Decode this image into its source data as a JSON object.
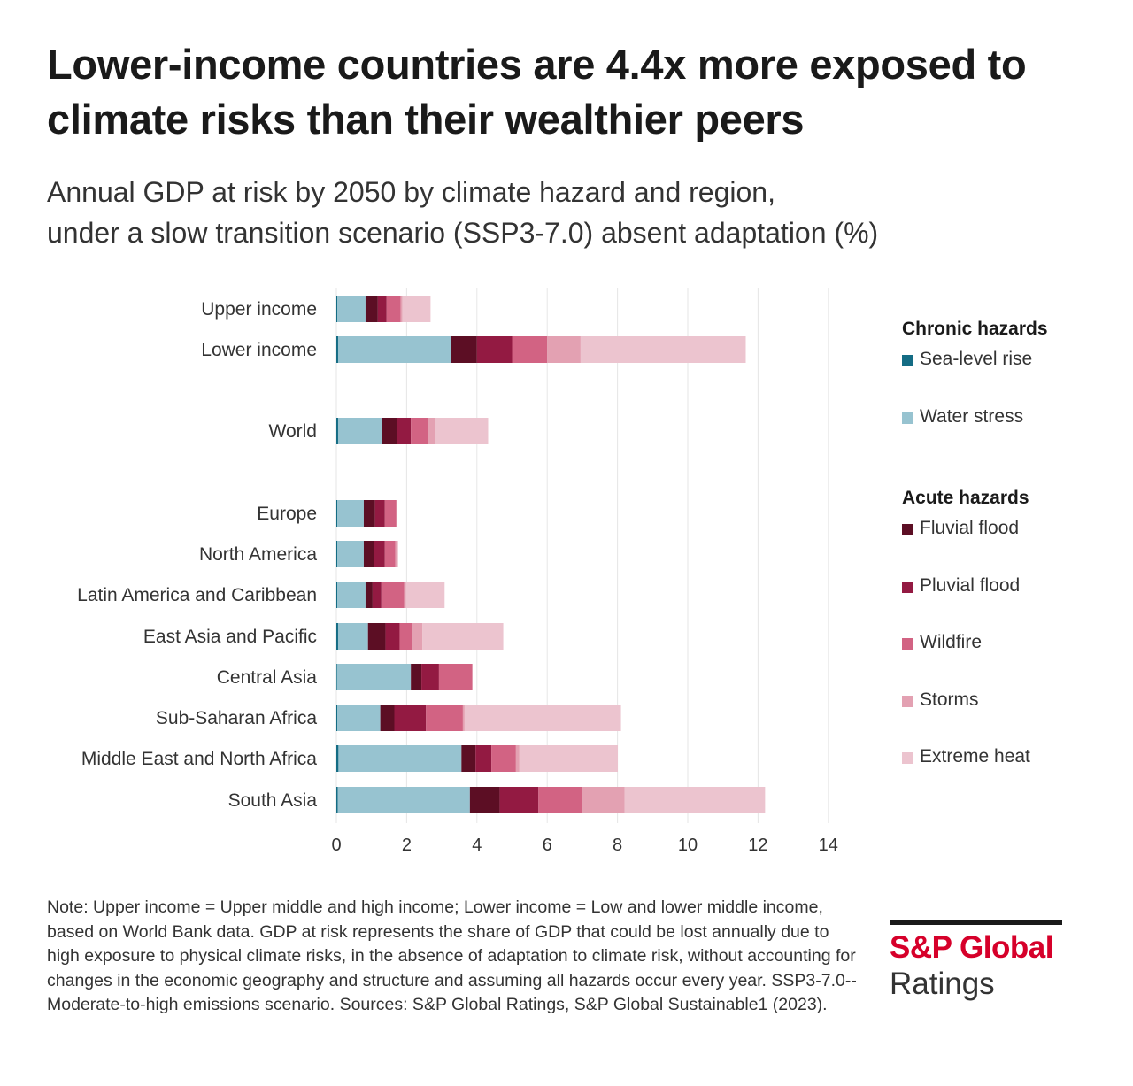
{
  "title": "Lower-income countries are 4.4x more exposed to climate risks than their wealthier peers",
  "subtitle_line1": "Annual GDP at risk by 2050 by climate hazard and region,",
  "subtitle_line2": "under a slow transition scenario (SSP3-7.0) absent adaptation (%)",
  "chart_data": {
    "type": "bar",
    "orientation": "horizontal",
    "stacked": true,
    "categories": [
      "Upper income",
      "Lower income",
      "World",
      "Europe",
      "North America",
      "Latin America and Caribbean",
      "East Asia and Pacific",
      "Central Asia",
      "Sub-Saharan Africa",
      "Middle East and North Africa",
      "South Asia"
    ],
    "series": [
      {
        "name": "Sea-level rise",
        "color": "#146c84",
        "values": [
          0.03,
          0.05,
          0.05,
          0.03,
          0.03,
          0.03,
          0.05,
          0.02,
          0.03,
          0.06,
          0.04
        ]
      },
      {
        "name": "Water stress",
        "color": "#97c3d0",
        "values": [
          0.8,
          3.2,
          1.25,
          0.75,
          0.75,
          0.8,
          0.85,
          2.1,
          1.22,
          3.5,
          3.76
        ]
      },
      {
        "name": "Fluvial flood",
        "color": "#5c0e24",
        "values": [
          0.35,
          0.75,
          0.42,
          0.32,
          0.3,
          0.2,
          0.5,
          0.3,
          0.4,
          0.4,
          0.85
        ]
      },
      {
        "name": "Pluvial flood",
        "color": "#931a42",
        "values": [
          0.25,
          1.0,
          0.4,
          0.28,
          0.3,
          0.25,
          0.4,
          0.5,
          0.9,
          0.45,
          1.1
        ]
      },
      {
        "name": "Wildfire",
        "color": "#d26383",
        "values": [
          0.4,
          1.0,
          0.5,
          0.32,
          0.3,
          0.65,
          0.35,
          0.95,
          1.05,
          0.7,
          1.25
        ]
      },
      {
        "name": "Storms",
        "color": "#e3a1b2",
        "values": [
          0.05,
          0.95,
          0.2,
          0.02,
          0.05,
          0.05,
          0.3,
          0.0,
          0.05,
          0.1,
          1.2
        ]
      },
      {
        "name": "Extreme heat",
        "color": "#ecc4cf",
        "values": [
          0.8,
          4.7,
          1.5,
          0.0,
          0.03,
          1.1,
          2.3,
          0.0,
          4.45,
          2.8,
          4.0
        ]
      }
    ],
    "xlim": [
      0,
      14
    ],
    "xticks": [
      "0",
      "2",
      "4",
      "6",
      "8",
      "10",
      "12",
      "14"
    ],
    "xlabel": "",
    "ylabel": "",
    "grid": true
  },
  "legend": {
    "chronic_head": "Chronic hazards",
    "chronic_items": [
      "Sea-level rise",
      "Water stress"
    ],
    "acute_head": "Acute hazards",
    "acute_items": [
      "Fluvial flood",
      "Pluvial flood",
      "Wildfire",
      "Storms",
      "Extreme heat"
    ],
    "colors": [
      "#146c84",
      "#97c3d0",
      "#5c0e24",
      "#931a42",
      "#d26383",
      "#e3a1b2",
      "#ecc4cf"
    ]
  },
  "note": "Note: Upper income = Upper middle and high income; Lower income = Low and lower middle income, based on World Bank data. GDP at risk represents the share of GDP that could be lost annually due to high exposure to physical climate risks, in the absence of adaptation to climate risk, without accounting for changes in the economic geography and structure and assuming all hazards occur every year. SSP3-7.0--Moderate-to-high emissions scenario. Sources: S&P Global Ratings, S&P Global Sustainable1 (2023).",
  "brand": {
    "name": "S&P Global",
    "sub": "Ratings"
  }
}
